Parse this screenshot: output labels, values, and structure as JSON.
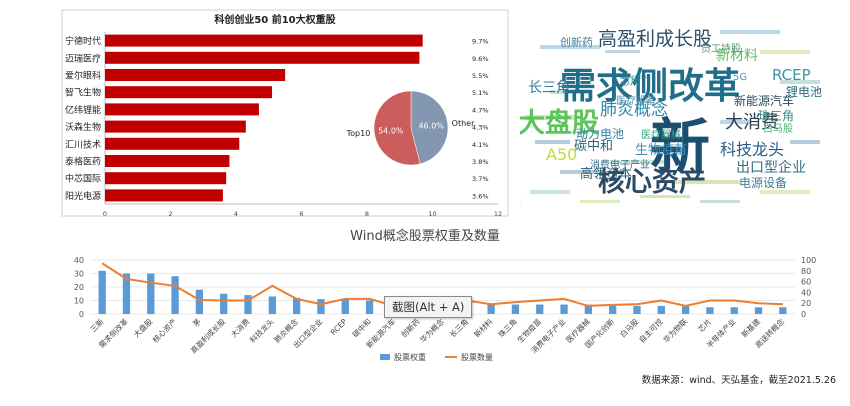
{
  "chart_data": [
    {
      "type": "bar",
      "orientation": "horizontal",
      "title": "科创创业50 前10大权重股",
      "categories": [
        "宁德时代",
        "迈瑞医疗",
        "爱尔眼科",
        "智飞生物",
        "亿纬锂能",
        "沃森生物",
        "汇川技术",
        "泰格医药",
        "中芯国际",
        "阳光电源"
      ],
      "values": [
        9.7,
        9.6,
        5.5,
        5.1,
        4.7,
        4.3,
        4.1,
        3.8,
        3.7,
        3.6
      ],
      "value_labels": [
        "9.7%",
        "9.6%",
        "5.5%",
        "5.1%",
        "4.7%",
        "4.3%",
        "4.1%",
        "3.8%",
        "3.7%",
        "3.6%"
      ],
      "xlim": [
        0,
        12
      ],
      "xticks": [
        "0",
        "2",
        "4",
        "6",
        "8",
        "10",
        "12"
      ],
      "color": "#c00000"
    },
    {
      "type": "pie",
      "slices": [
        {
          "label": "Top10",
          "value": 54.0,
          "value_label": "54.0%",
          "color": "#cd5c5c"
        },
        {
          "label": "Other",
          "value": 46.0,
          "value_label": "46.0%",
          "color": "#8497b0"
        }
      ]
    },
    {
      "type": "wordcloud",
      "words": [
        {
          "text": "需求侧改革",
          "color": "#1f6f8b"
        },
        {
          "text": "大盘股",
          "color": "#5cc45a"
        },
        {
          "text": "新",
          "color": "#1b4f72"
        },
        {
          "text": "核心资产",
          "color": "#2b4a66"
        },
        {
          "text": "高盈利成长股",
          "color": "#2c4f6e"
        },
        {
          "text": "A50",
          "color": "#c8d640"
        },
        {
          "text": "大消费",
          "color": "#2c3e50"
        },
        {
          "text": "科技龙头",
          "color": "#2a5c8a"
        },
        {
          "text": "肺炎概念",
          "color": "#2d8aa8"
        },
        {
          "text": "碳中和",
          "color": "#2a6478"
        },
        {
          "text": "出口型企业",
          "color": "#2e6f86"
        },
        {
          "text": "新能源汽车",
          "color": "#2c4a5e"
        },
        {
          "text": "长三角",
          "color": "#2f7a9a"
        },
        {
          "text": "RCEP",
          "color": "#3a96a6"
        },
        {
          "text": "锂电池",
          "color": "#2e6a7c"
        },
        {
          "text": "高瓴资本",
          "color": "#2e5a74"
        },
        {
          "text": "新材料",
          "color": "#5bbf5a"
        },
        {
          "text": "创新药",
          "color": "#4a7fa0"
        },
        {
          "text": "华为概念",
          "color": "#2a5b74"
        },
        {
          "text": "珠三角",
          "color": "#3a8b8b"
        },
        {
          "text": "生物疫苗",
          "color": "#3e8fb0"
        },
        {
          "text": "动力电池",
          "color": "#3d7ea6"
        },
        {
          "text": "电源设备",
          "color": "#3c7f97"
        },
        {
          "text": "白马股",
          "color": "#4ab87a"
        },
        {
          "text": "消费电子产业",
          "color": "#3a6d8c"
        },
        {
          "text": "医疗器械",
          "color": "#3aa37f"
        },
        {
          "text": "芯片",
          "color": "#3b8c9c"
        },
        {
          "text": "5G",
          "color": "#4a9bb5"
        },
        {
          "text": "员工持股",
          "color": "#5a9a6a"
        },
        {
          "text": "医疗设备",
          "color": "#4c8ba8"
        }
      ]
    },
    {
      "type": "bar+line",
      "title": "Wind概念股票权重及数量",
      "categories": [
        "三新",
        "需求侧改革",
        "大盘股",
        "核心资产",
        "茅",
        "高盈利成长股",
        "大消费",
        "科技龙头",
        "肺炎概念",
        "出口型企业",
        "RCEP",
        "碳中和",
        "新能源汽车",
        "创新药",
        "华为概念",
        "长三角",
        "新材料",
        "珠三角",
        "生物疫苗",
        "消费电子产业",
        "医疗器械",
        "国产化创新",
        "白马股",
        "自主可控",
        "华为物联",
        "芯片",
        "半导体产业",
        "新基建",
        "高送转概念"
      ],
      "series": [
        {
          "name": "股票权重",
          "type": "bar",
          "axis": "left",
          "color": "#5b9bd5",
          "values": [
            32,
            30,
            30,
            28,
            18,
            15,
            14,
            13,
            12,
            11,
            11,
            10,
            10,
            9,
            9,
            8,
            7,
            7,
            7,
            7,
            7,
            6,
            6,
            6,
            6,
            5,
            5,
            5,
            5
          ]
        },
        {
          "name": "股票数量",
          "type": "line",
          "axis": "right",
          "color": "#ed7d31",
          "values": [
            94,
            65,
            58,
            52,
            26,
            25,
            25,
            52,
            28,
            18,
            28,
            28,
            15,
            12,
            10,
            25,
            18,
            22,
            25,
            28,
            15,
            17,
            18,
            25,
            15,
            25,
            25,
            20,
            18
          ]
        }
      ],
      "ylim_left": [
        0,
        40
      ],
      "yticks_left": [
        "0",
        "10",
        "20",
        "30",
        "40"
      ],
      "ylim_right": [
        0,
        100
      ],
      "yticks_right": [
        "0",
        "20",
        "40",
        "60",
        "80",
        "100"
      ]
    }
  ],
  "tooltip": "截图(Alt + A)",
  "source_note": "数据来源：wind、天弘基金，截至2021.5.26"
}
